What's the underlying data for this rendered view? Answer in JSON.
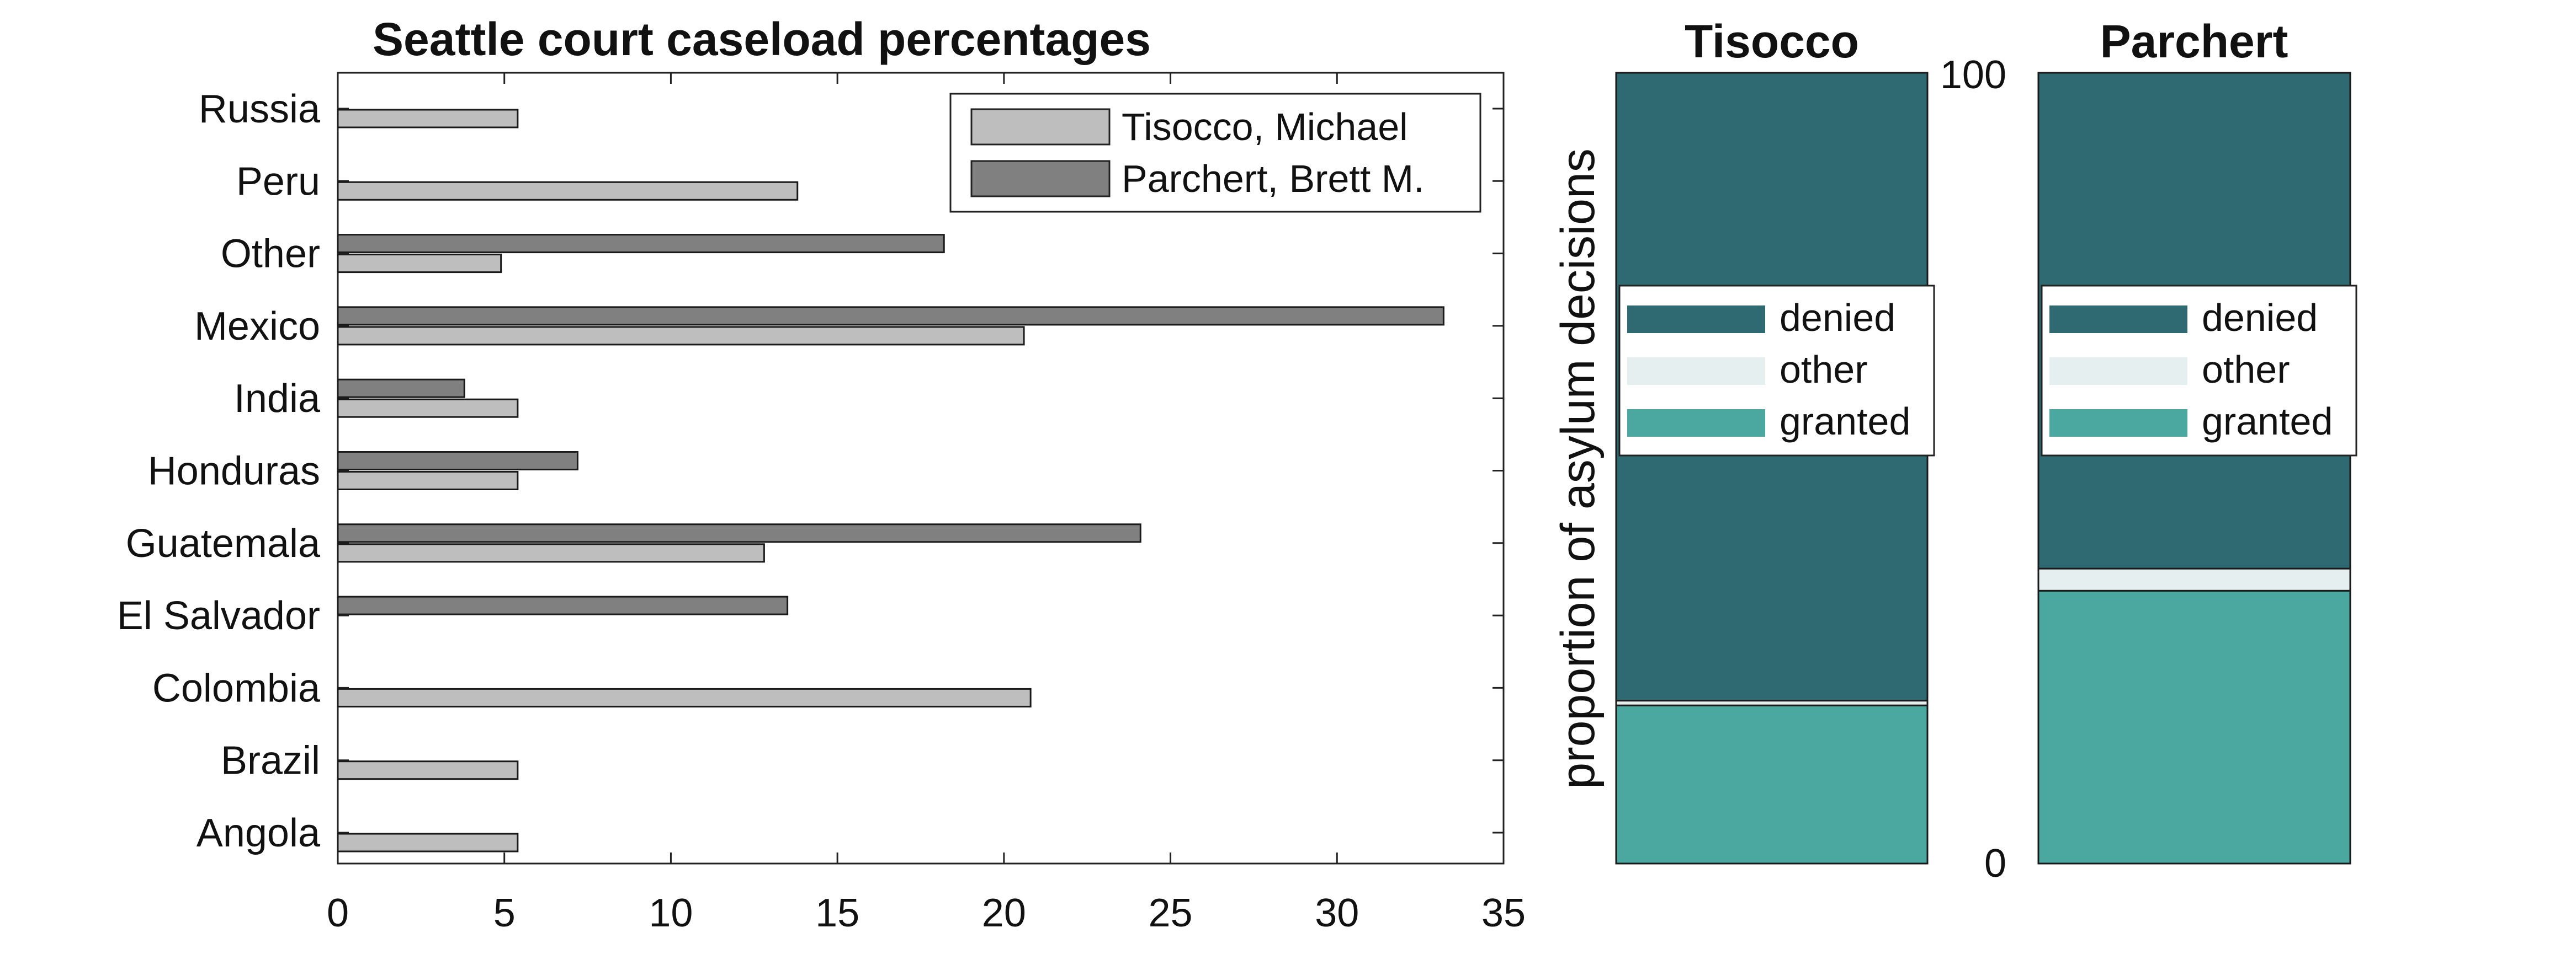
{
  "chart_data": [
    {
      "type": "bar",
      "orientation": "horizontal",
      "title": "Seattle court caseload percentages",
      "categories": [
        "Angola",
        "Brazil",
        "Colombia",
        "El Salvador",
        "Guatemala",
        "Honduras",
        "India",
        "Mexico",
        "Other",
        "Peru",
        "Russia"
      ],
      "series": [
        {
          "name": "Tisocco, Michael",
          "color": "#bebebe",
          "values": [
            5.4,
            5.4,
            20.8,
            0,
            12.8,
            5.4,
            5.4,
            20.6,
            4.9,
            13.8,
            5.4
          ]
        },
        {
          "name": "Parchert, Brett M.",
          "color": "#808080",
          "values": [
            0,
            0,
            0,
            13.5,
            24.1,
            7.2,
            3.8,
            33.2,
            18.2,
            0,
            0
          ]
        }
      ],
      "xlim": [
        0,
        35
      ],
      "xticks": [
        "0",
        "5",
        "10",
        "15",
        "20",
        "25",
        "30",
        "35"
      ],
      "legend": "top-right"
    },
    {
      "type": "bar",
      "stacked": true,
      "title": "Tisocco",
      "ylabel": "proportion of asylum decisions",
      "ylim": [
        0,
        100
      ],
      "segments": [
        {
          "name": "granted",
          "color": "#4aa8a0",
          "value": 20
        },
        {
          "name": "other",
          "color": "#e5eff0",
          "value": 0.6
        },
        {
          "name": "denied",
          "color": "#2f6a72",
          "value": 79.4
        }
      ],
      "legend": "center"
    },
    {
      "type": "bar",
      "stacked": true,
      "title": "Parchert",
      "ylim": [
        0,
        100
      ],
      "yticks": [
        "0",
        "100"
      ],
      "segments": [
        {
          "name": "granted",
          "color": "#4aa8a0",
          "value": 34.5
        },
        {
          "name": "other",
          "color": "#e5eff0",
          "value": 2.8
        },
        {
          "name": "denied",
          "color": "#2f6a72",
          "value": 62.7
        }
      ],
      "legend": "center"
    }
  ]
}
